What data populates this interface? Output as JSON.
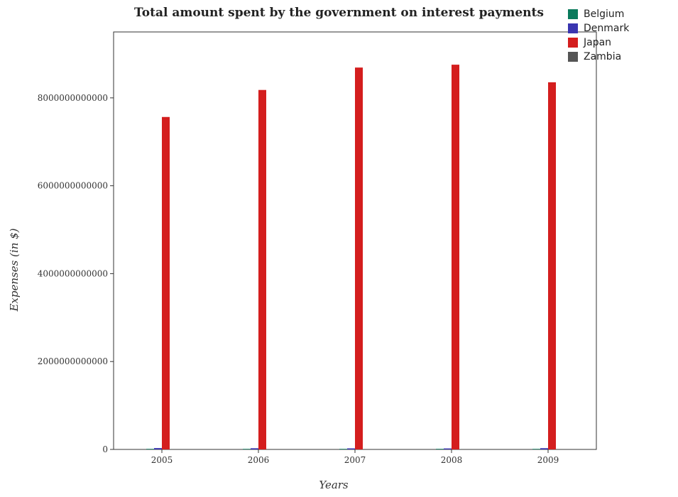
{
  "chart_data": {
    "type": "bar",
    "title": "Total amount spent by the government on interest payments",
    "xlabel": "Years",
    "ylabel": "Expenses (in $)",
    "categories": [
      "2005",
      "2006",
      "2007",
      "2008",
      "2009"
    ],
    "series": [
      {
        "name": "Belgium",
        "color": "#0a7a5c",
        "values": [
          12900000000,
          12700000000,
          12900000000,
          13400000000,
          12700000000
        ]
      },
      {
        "name": "Denmark",
        "color": "#3a35b0",
        "values": [
          31000000000,
          27000000000,
          24500000000,
          23000000000,
          28500000000
        ]
      },
      {
        "name": "Japan",
        "color": "#d41e1e",
        "values": [
          7565000000000,
          8180000000000,
          8690000000000,
          8755000000000,
          8355000000000
        ]
      },
      {
        "name": "Zambia",
        "color": "#555555",
        "values": [
          2400000000,
          1800000000,
          1600000000,
          1600000000,
          1800000000
        ]
      }
    ],
    "ylim": [
      0,
      9500000000000
    ],
    "yticks": [
      0,
      2000000000000,
      4000000000000,
      6000000000000,
      8000000000000
    ],
    "ytick_labels": [
      "0",
      "2000000000000",
      "4000000000000",
      "6000000000000",
      "8000000000000"
    ],
    "legend_position": "top-right",
    "grid": false
  }
}
